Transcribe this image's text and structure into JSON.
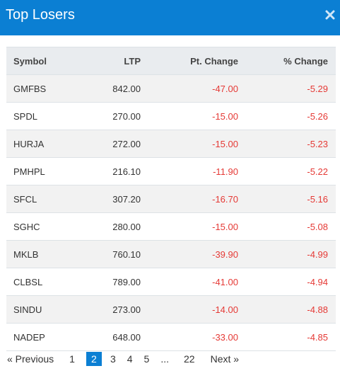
{
  "header": {
    "title": "Top Losers"
  },
  "table": {
    "columns": [
      "Symbol",
      "LTP",
      "Pt. Change",
      "% Change"
    ],
    "rows": [
      {
        "symbol": "GMFBS",
        "ltp": "842.00",
        "pt": "-47.00",
        "pct": "-5.29"
      },
      {
        "symbol": "SPDL",
        "ltp": "270.00",
        "pt": "-15.00",
        "pct": "-5.26"
      },
      {
        "symbol": "HURJA",
        "ltp": "272.00",
        "pt": "-15.00",
        "pct": "-5.23"
      },
      {
        "symbol": "PMHPL",
        "ltp": "216.10",
        "pt": "-11.90",
        "pct": "-5.22"
      },
      {
        "symbol": "SFCL",
        "ltp": "307.20",
        "pt": "-16.70",
        "pct": "-5.16"
      },
      {
        "symbol": "SGHC",
        "ltp": "280.00",
        "pt": "-15.00",
        "pct": "-5.08"
      },
      {
        "symbol": "MKLB",
        "ltp": "760.10",
        "pt": "-39.90",
        "pct": "-4.99"
      },
      {
        "symbol": "CLBSL",
        "ltp": "789.00",
        "pt": "-41.00",
        "pct": "-4.94"
      },
      {
        "symbol": "SINDU",
        "ltp": "273.00",
        "pt": "-14.00",
        "pct": "-4.88"
      },
      {
        "symbol": "NADEP",
        "ltp": "648.00",
        "pt": "-33.00",
        "pct": "-4.85"
      }
    ]
  },
  "pagination": {
    "previous": "«  Previous",
    "pages": [
      "1",
      "2",
      "3",
      "4",
      "5"
    ],
    "current": "2",
    "ellipsis": "...",
    "last": "22",
    "next": "Next  »"
  },
  "colors": {
    "accent": "#0b7fd3",
    "negative": "#e53935"
  },
  "icons": {
    "close": "close-icon"
  }
}
